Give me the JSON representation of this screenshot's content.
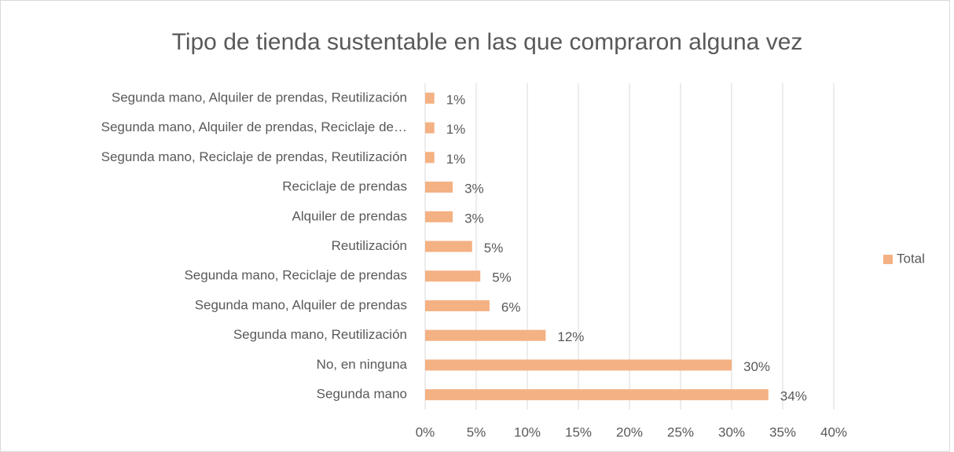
{
  "chart_data": {
    "type": "bar",
    "orientation": "horizontal",
    "title": "Tipo de tienda sustentable en las que compraron alguna vez",
    "categories": [
      "Segunda mano",
      "No, en ninguna",
      "Segunda mano, Reutilización",
      "Segunda mano, Alquiler de prendas",
      "Segunda mano, Reciclaje de prendas",
      "Reutilización",
      "Alquiler de prendas",
      "Reciclaje de prendas",
      "Segunda mano, Reciclaje de prendas, Reutilización",
      "Segunda mano, Alquiler de prendas, Reciclaje de…",
      "Segunda mano, Alquiler de prendas, Reutilización"
    ],
    "series": [
      {
        "name": "Total",
        "color": "#f4b183",
        "values": [
          33.6,
          30,
          11.8,
          6.3,
          5.4,
          4.6,
          2.7,
          2.7,
          0.9,
          0.9,
          0.9
        ],
        "value_labels": [
          "34%",
          "30%",
          "12%",
          "6%",
          "5%",
          "5%",
          "3%",
          "3%",
          "1%",
          "1%",
          "1%"
        ]
      }
    ],
    "xlim": [
      0,
      40
    ],
    "xticks": [
      {
        "value": 0,
        "label": "0%"
      },
      {
        "value": 5,
        "label": "5%"
      },
      {
        "value": 10,
        "label": "10%"
      },
      {
        "value": 15,
        "label": "15%"
      },
      {
        "value": 20,
        "label": "20%"
      },
      {
        "value": 25,
        "label": "25%"
      },
      {
        "value": 30,
        "label": "30%"
      },
      {
        "value": 35,
        "label": "35%"
      },
      {
        "value": 40,
        "label": "40%"
      }
    ],
    "grid": true,
    "legend": "right"
  }
}
